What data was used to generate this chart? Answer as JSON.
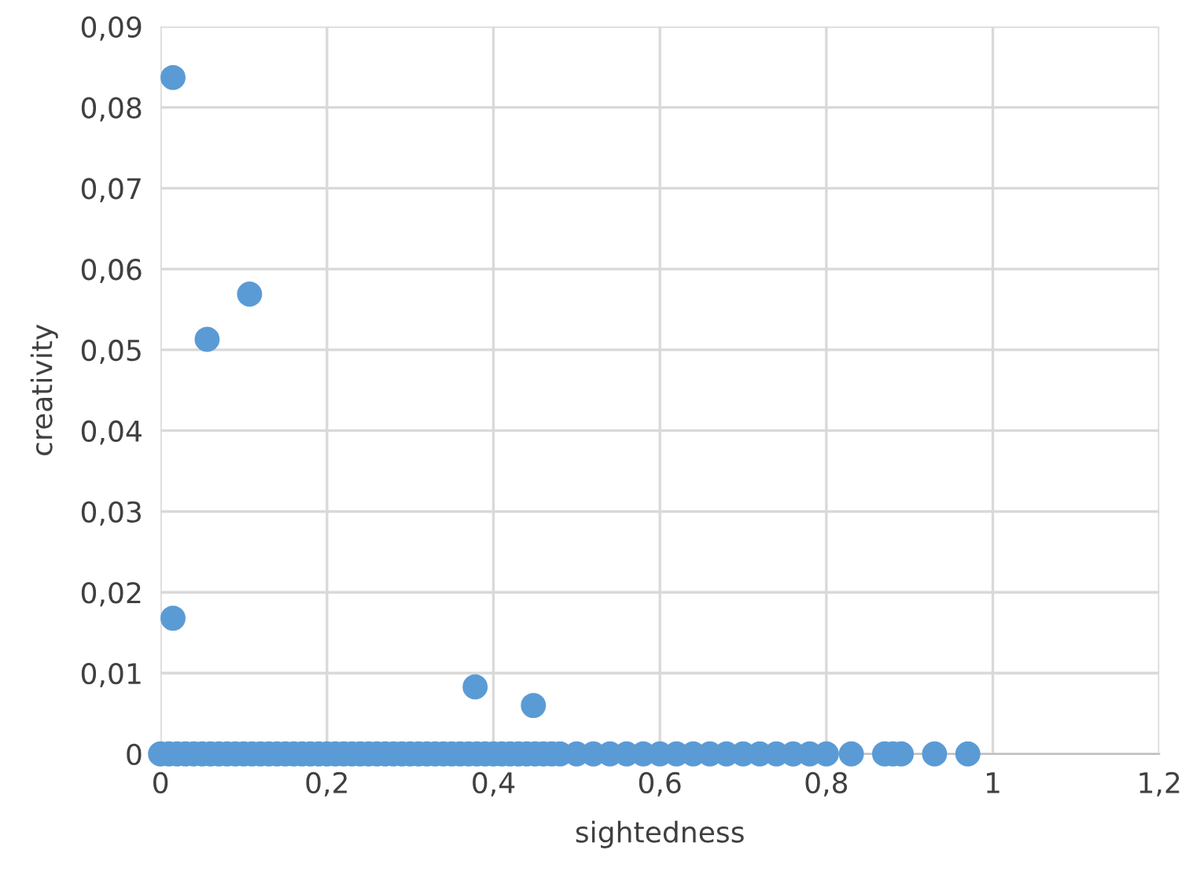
{
  "chart_data": {
    "type": "scatter",
    "xlabel": "sightedness",
    "ylabel": "creativity",
    "series": [
      {
        "color": "#5b9bd5",
        "x": [
          0.015,
          0.056,
          0.107,
          0.015,
          0.378,
          0.448,
          0.0,
          0.01,
          0.02,
          0.03,
          0.04,
          0.05,
          0.06,
          0.07,
          0.08,
          0.09,
          0.1,
          0.11,
          0.12,
          0.13,
          0.14,
          0.15,
          0.16,
          0.17,
          0.18,
          0.19,
          0.2,
          0.21,
          0.22,
          0.23,
          0.24,
          0.25,
          0.26,
          0.27,
          0.28,
          0.29,
          0.3,
          0.31,
          0.32,
          0.33,
          0.34,
          0.35,
          0.36,
          0.37,
          0.38,
          0.39,
          0.4,
          0.41,
          0.42,
          0.43,
          0.44,
          0.45,
          0.46,
          0.47,
          0.48,
          0.5,
          0.52,
          0.54,
          0.56,
          0.58,
          0.6,
          0.62,
          0.64,
          0.66,
          0.68,
          0.7,
          0.72,
          0.74,
          0.76,
          0.78,
          0.8,
          0.83,
          0.87,
          0.88,
          0.89,
          0.93,
          0.97
        ],
        "values": [
          0.0837,
          0.0513,
          0.0569,
          0.0168,
          0.0083,
          0.006,
          0,
          0,
          0,
          0,
          0,
          0,
          0,
          0,
          0,
          0,
          0,
          0,
          0,
          0,
          0,
          0,
          0,
          0,
          0,
          0,
          0,
          0,
          0,
          0,
          0,
          0,
          0,
          0,
          0,
          0,
          0,
          0,
          0,
          0,
          0,
          0,
          0,
          0,
          0,
          0,
          0,
          0,
          0,
          0,
          0,
          0,
          0,
          0,
          0,
          0,
          0,
          0,
          0,
          0,
          0,
          0,
          0,
          0,
          0,
          0,
          0,
          0,
          0,
          0,
          0,
          0,
          0,
          0,
          0,
          0,
          0
        ]
      }
    ],
    "marker": "circle",
    "grid": true,
    "xlim": [
      0,
      1.2
    ],
    "xticks": [
      0,
      {
        "value": 0.2,
        "label": "0,2"
      },
      {
        "value": 0.4,
        "label": "0,4"
      },
      {
        "value": 0.6,
        "label": "0,6"
      },
      {
        "value": 0.8,
        "label": "0,8"
      },
      1,
      {
        "value": 1.2,
        "label": "1,2"
      }
    ],
    "ylim": [
      0,
      0.09
    ],
    "yticks": [
      0,
      {
        "value": 0.01,
        "label": "0,01"
      },
      {
        "value": 0.02,
        "label": "0,02"
      },
      {
        "value": 0.03,
        "label": "0,03"
      },
      {
        "value": 0.04,
        "label": "0,04"
      },
      {
        "value": 0.05,
        "label": "0,05"
      },
      {
        "value": 0.06,
        "label": "0,06"
      },
      {
        "value": 0.07,
        "label": "0,07"
      },
      {
        "value": 0.08,
        "label": "0,08"
      },
      {
        "value": 0.09,
        "label": "0,09"
      }
    ]
  }
}
